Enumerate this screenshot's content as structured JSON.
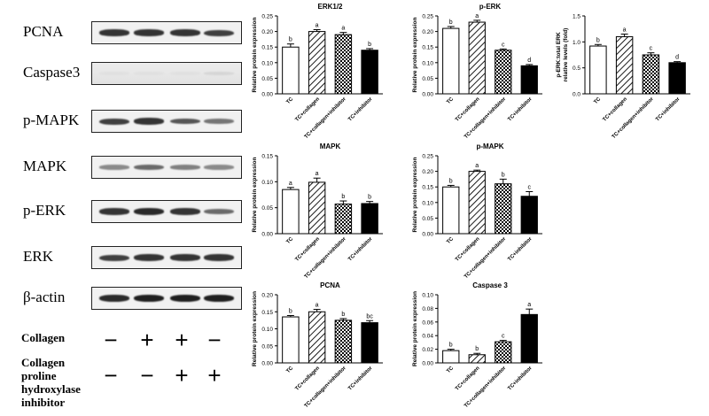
{
  "blots": {
    "rows": [
      {
        "label": "PCNA",
        "intensity": [
          0.85,
          0.85,
          0.85,
          0.8
        ]
      },
      {
        "label": "Caspase3",
        "intensity": [
          0.05,
          0.05,
          0.05,
          0.1
        ]
      },
      {
        "label": "p-MAPK",
        "intensity": [
          0.8,
          0.85,
          0.7,
          0.55
        ]
      },
      {
        "label": "MAPK",
        "intensity": [
          0.45,
          0.6,
          0.5,
          0.45
        ]
      },
      {
        "label": "p-ERK",
        "intensity": [
          0.85,
          0.9,
          0.85,
          0.6
        ]
      },
      {
        "label": "ERK",
        "intensity": [
          0.8,
          0.85,
          0.85,
          0.85
        ]
      },
      {
        "label": "β-actin",
        "intensity": [
          0.9,
          0.95,
          0.95,
          0.95
        ]
      }
    ],
    "conditions": [
      {
        "label_lines": [
          "Collagen"
        ],
        "signs": [
          "−",
          "+",
          "+",
          "−"
        ]
      },
      {
        "label_lines": [
          "Collagen",
          "proline",
          "hydroxylase",
          "inhibitor"
        ],
        "signs": [
          "−",
          "−",
          "+",
          "+"
        ]
      }
    ]
  },
  "chart_data": [
    {
      "type": "bar",
      "title": "ERK1/2",
      "ylabel": "Relative protein expression",
      "categories": [
        "TC",
        "TC+collagen",
        "TC+collagen+inhibitor",
        "TC+inhibitor"
      ],
      "values": [
        0.15,
        0.2,
        0.19,
        0.14
      ],
      "errors": [
        0.01,
        0.006,
        0.007,
        0.005
      ],
      "letters": [
        "b",
        "a",
        "a",
        "b"
      ],
      "ylim": [
        0,
        0.25
      ],
      "yticks": [
        "0.00",
        "0.05",
        "0.10",
        "0.15",
        "0.20",
        "0.25"
      ]
    },
    {
      "type": "bar",
      "title": "p-ERK",
      "ylabel": "Relative protein expression",
      "categories": [
        "TC",
        "TC+collagen",
        "TC+collagen+inhibitor",
        "TC+inhibitor"
      ],
      "values": [
        0.21,
        0.23,
        0.14,
        0.09
      ],
      "errors": [
        0.006,
        0.006,
        0.004,
        0.004
      ],
      "letters": [
        "b",
        "a",
        "c",
        "d"
      ],
      "ylim": [
        0,
        0.25
      ],
      "yticks": [
        "0.00",
        "0.05",
        "0.10",
        "0.15",
        "0.20",
        "0.25"
      ]
    },
    {
      "type": "bar",
      "title": "",
      "ylabel_lines": [
        "p-ERK:total ERK",
        "relative levels (fold)"
      ],
      "categories": [
        "TC",
        "TC+collagen",
        "TC+collagen+inhibitor",
        "TC+inhibitor"
      ],
      "values": [
        0.92,
        1.1,
        0.75,
        0.6
      ],
      "errors": [
        0.03,
        0.05,
        0.04,
        0.02
      ],
      "letters": [
        "b",
        "a",
        "c",
        "d"
      ],
      "ylim": [
        0,
        1.5
      ],
      "yticks": [
        "0.0",
        "0.5",
        "1.0",
        "1.5"
      ]
    },
    {
      "type": "bar",
      "title": "MAPK",
      "ylabel": "Relative protein expression",
      "categories": [
        "TC",
        "TC+collagen",
        "TC+collagen+inhibitor",
        "TC+inhibitor"
      ],
      "values": [
        0.085,
        0.099,
        0.057,
        0.058
      ],
      "errors": [
        0.004,
        0.008,
        0.006,
        0.004
      ],
      "letters": [
        "a",
        "a",
        "b",
        "b"
      ],
      "ylim": [
        0,
        0.15
      ],
      "yticks": [
        "0.00",
        "0.05",
        "0.10",
        "0.15"
      ]
    },
    {
      "type": "bar",
      "title": "p-MAPK",
      "ylabel": "Relative protein expression",
      "categories": [
        "TC",
        "TC+collagen",
        "TC+collagen+inhibitor",
        "TC+inhibitor"
      ],
      "values": [
        0.15,
        0.2,
        0.16,
        0.12
      ],
      "errors": [
        0.005,
        0.004,
        0.015,
        0.015
      ],
      "letters": [
        "b",
        "a",
        "b",
        "c"
      ],
      "ylim": [
        0,
        0.25
      ],
      "yticks": [
        "0.00",
        "0.05",
        "0.10",
        "0.15",
        "0.20",
        "0.25"
      ]
    },
    {
      "type": "bar",
      "title": "PCNA",
      "ylabel": "Relative protein expression",
      "categories": [
        "TC",
        "TC+collagen",
        "TC+collagen+inhibitor",
        "TC+inhibitor"
      ],
      "values": [
        0.135,
        0.15,
        0.125,
        0.118
      ],
      "errors": [
        0.004,
        0.007,
        0.005,
        0.006
      ],
      "letters": [
        "b",
        "a",
        "b",
        "bc"
      ],
      "ylim": [
        0,
        0.2
      ],
      "yticks": [
        "0.00",
        "0.05",
        "0.10",
        "0.15",
        "0.20"
      ]
    },
    {
      "type": "bar",
      "title": "Caspase 3",
      "ylabel": "Relative protein expression",
      "categories": [
        "TC",
        "TC+collagen",
        "TC+collagen+inhibitor",
        "TC+inhibitor"
      ],
      "values": [
        0.018,
        0.012,
        0.031,
        0.071
      ],
      "errors": [
        0.002,
        0.002,
        0.002,
        0.008
      ],
      "letters": [
        "b",
        "b",
        "c",
        "a"
      ],
      "ylim": [
        0,
        0.1
      ],
      "yticks": [
        "0.00",
        "0.02",
        "0.04",
        "0.06",
        "0.08",
        "0.10"
      ]
    }
  ],
  "colors": {
    "axis": "#000000",
    "bar_fill_solid": "#000000",
    "bar_fill_empty": "#ffffff"
  }
}
